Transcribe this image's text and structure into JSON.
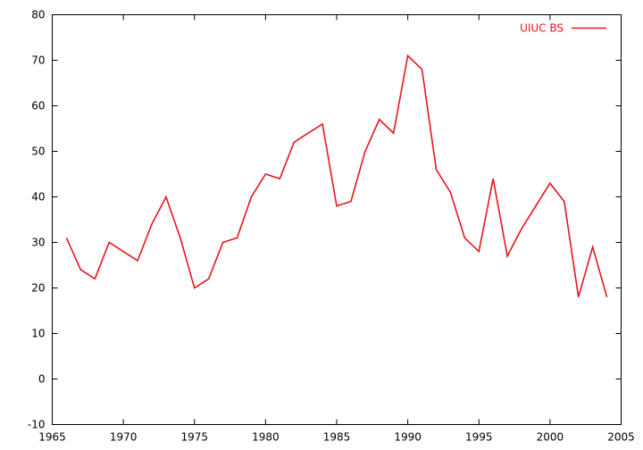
{
  "chart_data": {
    "type": "line",
    "title": "",
    "xlabel": "",
    "ylabel": "",
    "xlim": [
      1965,
      2005
    ],
    "ylim": [
      -10,
      80
    ],
    "xticks": [
      1965,
      1970,
      1975,
      1980,
      1985,
      1990,
      1995,
      2000,
      2005
    ],
    "yticks": [
      -10,
      0,
      10,
      20,
      30,
      40,
      50,
      60,
      70,
      80
    ],
    "grid": false,
    "legend_position": "top-right",
    "series": [
      {
        "name": "UIUC BS",
        "color": "#e8141c",
        "x": [
          1966,
          1967,
          1968,
          1969,
          1970,
          1971,
          1972,
          1973,
          1974,
          1975,
          1976,
          1977,
          1978,
          1979,
          1980,
          1981,
          1982,
          1983,
          1984,
          1985,
          1986,
          1987,
          1988,
          1989,
          1990,
          1991,
          1992,
          1993,
          1994,
          1995,
          1996,
          1997,
          1998,
          1999,
          2000,
          2001,
          2002,
          2003,
          2004
        ],
        "y": [
          31,
          24,
          22,
          30,
          28,
          26,
          34,
          40,
          31,
          20,
          22,
          30,
          31,
          40,
          45,
          44,
          52,
          54,
          56,
          38,
          39,
          50,
          57,
          54,
          71,
          68,
          46,
          41,
          31,
          28,
          44,
          27,
          33,
          38,
          43,
          39,
          18,
          29,
          18
        ]
      }
    ]
  }
}
